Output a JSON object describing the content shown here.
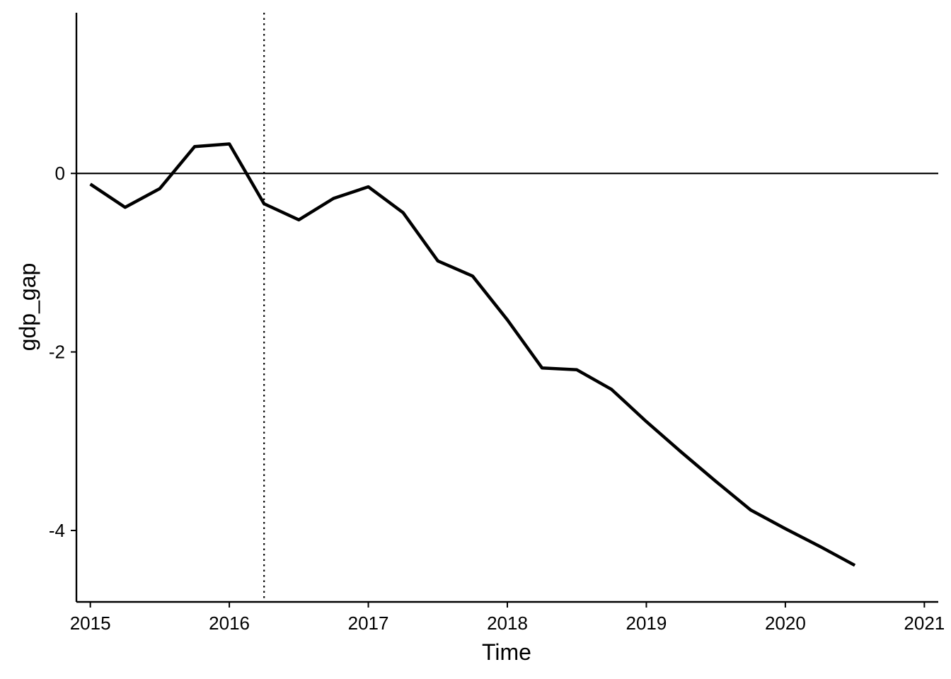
{
  "chart_data": {
    "type": "line",
    "title": "",
    "xlabel": "Time",
    "ylabel": "gdp_gap",
    "xlim": [
      2014.9,
      2021.1
    ],
    "ylim": [
      -4.8,
      1.8
    ],
    "x_ticks": [
      {
        "value": 2015,
        "label": "2015"
      },
      {
        "value": 2016,
        "label": "2016"
      },
      {
        "value": 2017,
        "label": "2017"
      },
      {
        "value": 2018,
        "label": "2018"
      },
      {
        "value": 2019,
        "label": "2019"
      },
      {
        "value": 2020,
        "label": "2020"
      },
      {
        "value": 2021,
        "label": "2021"
      }
    ],
    "y_ticks": [
      {
        "value": 0,
        "label": "0"
      },
      {
        "value": -2,
        "label": "-2"
      },
      {
        "value": -4,
        "label": "-4"
      }
    ],
    "grid": false,
    "legend": "none",
    "reference_lines": {
      "horizontal_y": 0,
      "vertical_x_dotted": 2016.25
    },
    "series": [
      {
        "color": "#000000",
        "x": [
          2015.0,
          2015.25,
          2015.5,
          2015.75,
          2016.0,
          2016.25,
          2016.5,
          2016.75,
          2017.0,
          2017.25,
          2017.5,
          2017.75,
          2018.0,
          2018.25,
          2018.5,
          2018.75,
          2019.0,
          2019.25,
          2019.5,
          2019.75,
          2020.0,
          2020.25,
          2020.5
        ],
        "y": [
          -0.12,
          -0.38,
          -0.17,
          0.3,
          0.33,
          -0.34,
          -0.52,
          -0.28,
          -0.15,
          -0.44,
          -0.98,
          -1.15,
          -1.64,
          -2.18,
          -2.2,
          -2.42,
          -2.78,
          -3.12,
          -3.45,
          -3.77,
          -3.98,
          -4.18,
          -4.39
        ]
      }
    ]
  }
}
